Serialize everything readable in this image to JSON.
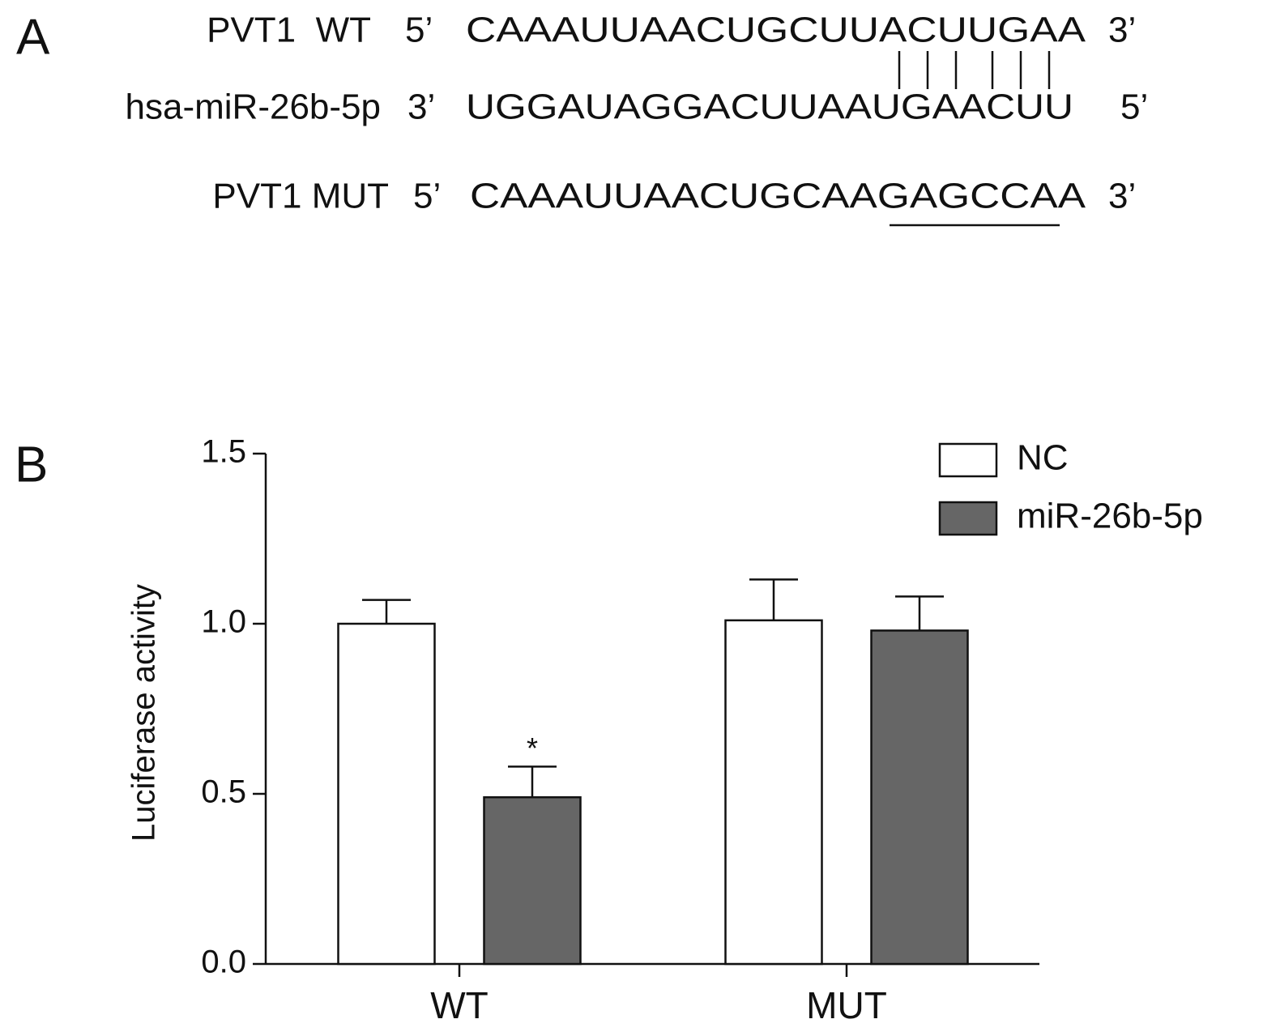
{
  "panel_a": {
    "label": "A",
    "rows": [
      {
        "label": "PVT1  WT",
        "left_end": "5’",
        "sequence": "CAAAUUAACUGCUUACUUGAA",
        "right_end": "3’"
      },
      {
        "label": "hsa-miR-26b-5p",
        "left_end": "3’",
        "sequence": "UGGAUAGGACUUAAUGAACUU",
        "right_end": "5’"
      },
      {
        "label": "PVT1 MUT",
        "left_end": "5’",
        "sequence": "CAAAUUAACUGCAAGAGCCAA",
        "right_end": "3’"
      }
    ]
  },
  "chart_data": {
    "type": "bar",
    "panel_label": "B",
    "y_label": "Luciferase activity",
    "categories": [
      "WT",
      "MUT"
    ],
    "series": [
      {
        "name": "NC",
        "color": "#ffffff",
        "values": [
          1.0,
          1.01
        ],
        "errors": [
          0.07,
          0.12
        ]
      },
      {
        "name": "miR-26b-5p",
        "color": "#666666",
        "values": [
          0.49,
          0.98
        ],
        "errors": [
          0.09,
          0.1
        ]
      }
    ],
    "annotation": "*",
    "ylim": [
      0,
      1.5
    ],
    "yticks": [
      {
        "value": 0,
        "label": "0.0"
      },
      0.5,
      {
        "value": 1,
        "label": "1.0"
      },
      1.5
    ],
    "legend": "top-right"
  }
}
